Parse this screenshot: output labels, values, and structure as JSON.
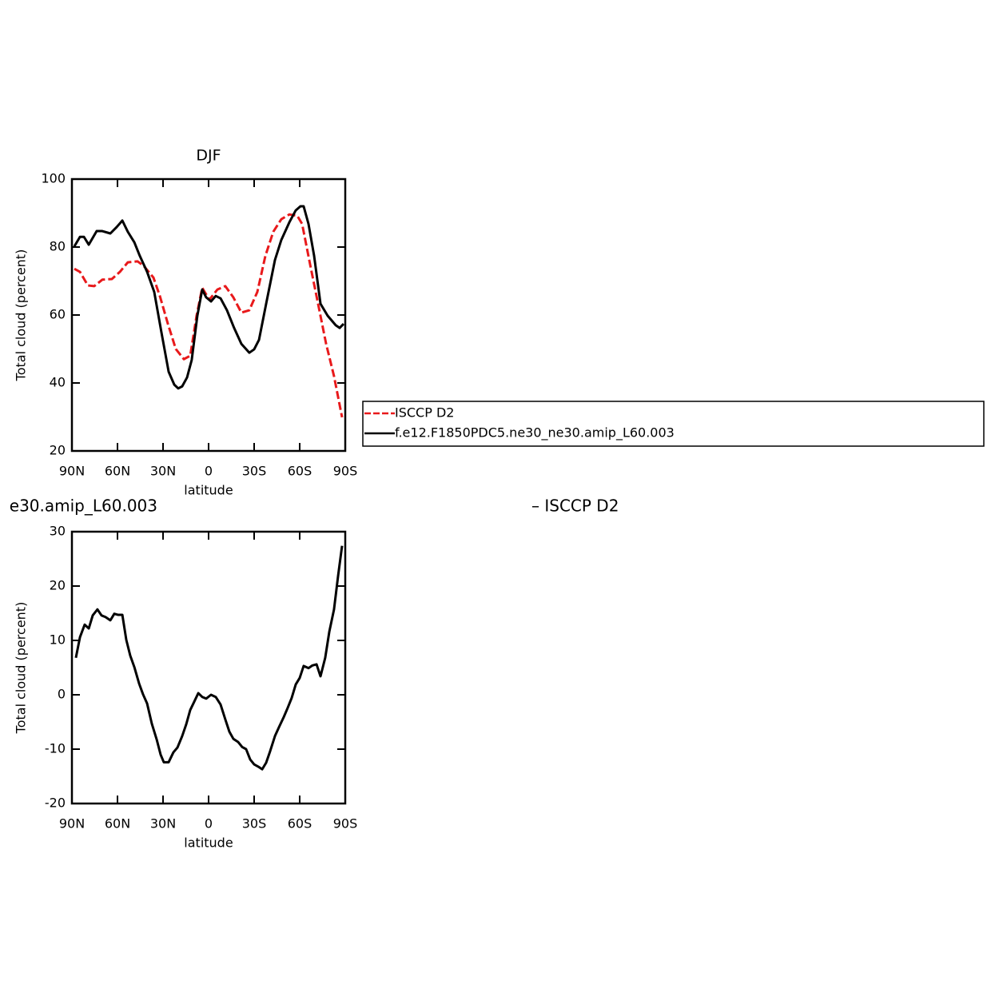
{
  "chart_data": [
    {
      "type": "line",
      "title": "DJF",
      "xlabel": "latitude",
      "ylabel": "Total cloud (percent)",
      "xlim": [
        90,
        -90
      ],
      "ylim": [
        20,
        100
      ],
      "xticks": [
        {
          "value": 90,
          "label": "90N"
        },
        {
          "value": 60,
          "label": "60N"
        },
        {
          "value": 30,
          "label": "30N"
        },
        0,
        {
          "value": -30,
          "label": "30S"
        },
        {
          "value": -60,
          "label": "60S"
        },
        {
          "value": -90,
          "label": "90S"
        }
      ],
      "yticks": [
        20,
        40,
        60,
        80,
        100
      ],
      "legend": true,
      "series": [
        {
          "name": "ISCCP D2",
          "color": "#e8191b",
          "dashed": true,
          "x": [
            88.4,
            84.7,
            79.5,
            75.3,
            70,
            63.7,
            58.4,
            53.2,
            46.8,
            42.6,
            36.3,
            32.1,
            26.8,
            21.6,
            16.3,
            12.1,
            7.9,
            4.2,
            -0.5,
            -5.8,
            -11,
            -16.3,
            -21.6,
            -26.8,
            -32.1,
            -37.4,
            -42.6,
            -47.9,
            -53.2,
            -58.4,
            -61.6,
            -66.8,
            -72.1,
            -77.4,
            -82.6,
            -87.9
          ],
          "values": [
            73.6,
            72.7,
            68.7,
            68.5,
            70.4,
            70.6,
            72.7,
            75.5,
            75.8,
            74.4,
            71,
            65.6,
            57.4,
            50,
            47,
            48,
            59.8,
            68,
            64.5,
            67.5,
            68.5,
            65.2,
            60.7,
            61.4,
            66.8,
            77.4,
            84.5,
            88.2,
            89.6,
            89.2,
            86.8,
            75,
            63.3,
            51.5,
            42,
            29.9
          ]
        },
        {
          "name": "f.e12.F1850PDC5.ne30_ne30.amip_L60.003",
          "color": "#000000",
          "dashed": false,
          "x": [
            88.4,
            84.7,
            82.1,
            78.9,
            73.7,
            70,
            64.7,
            60.5,
            56.8,
            53.2,
            48.9,
            45.3,
            40.5,
            35.8,
            31.1,
            26.3,
            22.6,
            20,
            17.4,
            14.2,
            11.1,
            7.4,
            4.2,
            1.6,
            -1.6,
            -4.7,
            -7.9,
            -12.1,
            -16.8,
            -21.6,
            -26.8,
            -30,
            -33.2,
            -37.9,
            -43.7,
            -47.9,
            -53.2,
            -57.4,
            -60.5,
            -62.6,
            -65.8,
            -69.5,
            -73.7,
            -78.4,
            -83.7,
            -86.3,
            -88.9
          ],
          "values": [
            80.2,
            83,
            83,
            80.7,
            84.7,
            84.7,
            84,
            85.9,
            87.8,
            84.5,
            81.4,
            77.4,
            72.7,
            66.8,
            55,
            43.3,
            39.5,
            38.4,
            39,
            41.6,
            46.8,
            59.8,
            67.5,
            65.2,
            64,
            65.6,
            64.9,
            61.4,
            56.2,
            51.5,
            48.9,
            49.9,
            52.7,
            63.3,
            76.2,
            82.1,
            87.3,
            90.8,
            92,
            92,
            86.8,
            77.4,
            63.3,
            59.8,
            57,
            56.2,
            57.4
          ]
        }
      ]
    },
    {
      "type": "line",
      "title": "e30.amip_L60.003",
      "title_right": "– ISCCP D2",
      "xlabel": "latitude",
      "ylabel": "Total cloud (percent)",
      "xlim": [
        90,
        -90
      ],
      "ylim": [
        -20,
        30
      ],
      "xticks": [
        {
          "value": 90,
          "label": "90N"
        },
        {
          "value": 60,
          "label": "60N"
        },
        {
          "value": 30,
          "label": "30N"
        },
        0,
        {
          "value": -30,
          "label": "30S"
        },
        {
          "value": -60,
          "label": "60S"
        },
        {
          "value": -90,
          "label": "90S"
        }
      ],
      "yticks": [
        -20,
        -10,
        0,
        10,
        20,
        30
      ],
      "legend": false,
      "series": [
        {
          "color": "#000000",
          "dashed": false,
          "x": [
            87.4,
            84.7,
            81.6,
            78.9,
            76.3,
            73.2,
            70.5,
            67.9,
            64.7,
            62.1,
            59.5,
            56.8,
            54.2,
            51.6,
            48.9,
            45.8,
            43.2,
            40.5,
            37.4,
            34.2,
            31.6,
            29.5,
            26.3,
            23.2,
            20.5,
            17.4,
            14.7,
            12.1,
            9.5,
            6.8,
            4.2,
            1.6,
            -1.6,
            -4.7,
            -7.9,
            -11.1,
            -13.7,
            -16.3,
            -19.5,
            -22.1,
            -24.7,
            -27.4,
            -30,
            -32.6,
            -35.3,
            -37.9,
            -40.5,
            -43.7,
            -46.3,
            -49.5,
            -52.1,
            -54.7,
            -57.4,
            -60,
            -62.6,
            -65.8,
            -68.4,
            -71.1,
            -73.7,
            -76.8,
            -79.5,
            -82.6,
            -85.3,
            -87.9
          ],
          "values": [
            6.8,
            10.6,
            12.9,
            12.2,
            14.6,
            15.7,
            14.6,
            14.3,
            13.7,
            14.9,
            14.7,
            14.7,
            10.1,
            7.2,
            5.1,
            2.1,
            0.1,
            -1.6,
            -5.3,
            -8.2,
            -11,
            -12.4,
            -12.4,
            -10.6,
            -9.7,
            -7.6,
            -5.4,
            -2.8,
            -1.3,
            0.3,
            -0.4,
            -0.7,
            0,
            -0.4,
            -1.8,
            -4.6,
            -6.8,
            -8.1,
            -8.7,
            -9.6,
            -10,
            -11.9,
            -12.8,
            -13.2,
            -13.7,
            -12.5,
            -10.4,
            -7.6,
            -6,
            -4.1,
            -2.4,
            -0.6,
            1.9,
            3.1,
            5.3,
            4.9,
            5.4,
            5.6,
            3.4,
            6.8,
            11.6,
            15.7,
            21.9,
            27.4
          ]
        }
      ]
    }
  ]
}
